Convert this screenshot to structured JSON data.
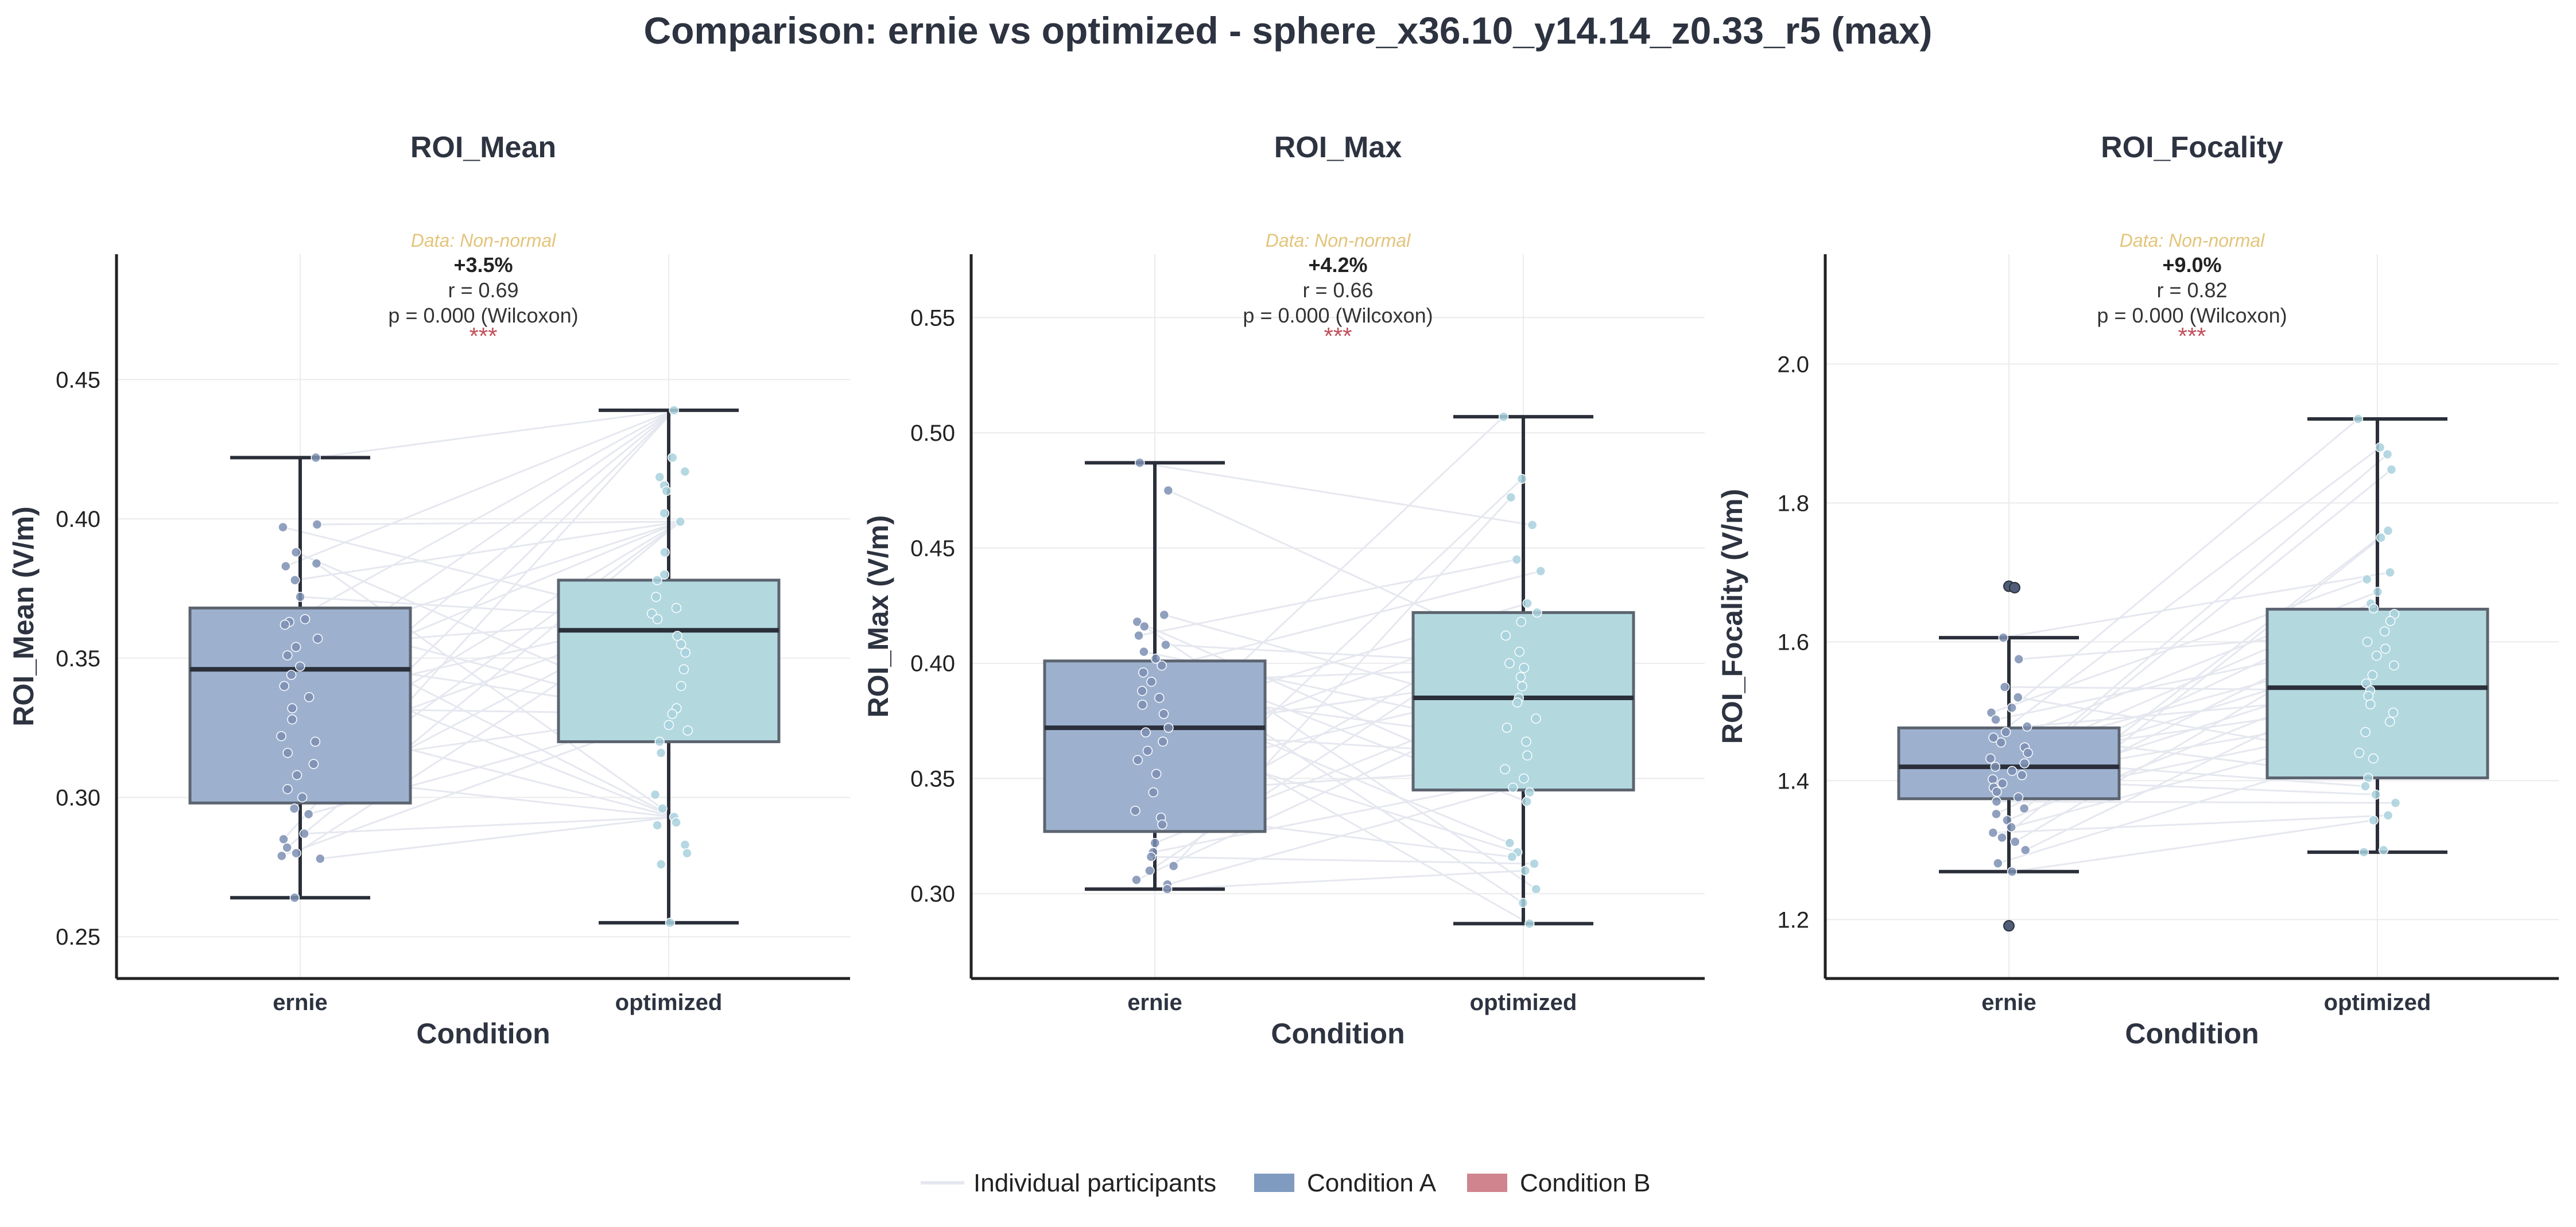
{
  "figure_title": "Comparison: ernie vs optimized - sphere_x36.10_y14.14_z0.33_r5 (max)",
  "legend": {
    "items": [
      {
        "label": "Individual participants",
        "kind": "line",
        "color": "#e6e8f0"
      },
      {
        "label": "Condition A",
        "kind": "patch",
        "color": "#7f9bbf"
      },
      {
        "label": "Condition B",
        "kind": "patch",
        "color": "#d0848e"
      }
    ]
  },
  "colors": {
    "ernie_box": "#9db1cf",
    "optimized_box": "#b3d9df",
    "ernie_points": "#7d8fb3",
    "optimized_points": "#a8d1dd",
    "median": "#2a2f3a",
    "whisker": "#2a2f3a",
    "box_edge": "#5c6470",
    "participant_lines": "#e6e8f0",
    "grid": "#ebebeb"
  },
  "chart_data": [
    {
      "type": "box",
      "title": "ROI_Mean",
      "xlabel": "Condition",
      "ylabel": "ROI_Mean (V/m)",
      "categories": [
        "ernie",
        "optimized"
      ],
      "ylim": [
        0.235,
        0.495
      ],
      "yticks": [
        0.25,
        0.3,
        0.35,
        0.4,
        0.45
      ],
      "tick_labels": [
        "0.25",
        "0.30",
        "0.35",
        "0.40",
        "0.45"
      ],
      "grid": true,
      "box_stats": [
        {
          "name": "ernie",
          "whislo": 0.264,
          "q1": 0.298,
          "median": 0.346,
          "q3": 0.368,
          "whishi": 0.422
        },
        {
          "name": "optimized",
          "whislo": 0.255,
          "q1": 0.32,
          "median": 0.36,
          "q3": 0.378,
          "whishi": 0.439
        }
      ],
      "points": {
        "ernie": [
          0.422,
          0.398,
          0.397,
          0.388,
          0.384,
          0.383,
          0.378,
          0.372,
          0.364,
          0.363,
          0.362,
          0.357,
          0.354,
          0.351,
          0.347,
          0.344,
          0.34,
          0.336,
          0.332,
          0.328,
          0.322,
          0.32,
          0.316,
          0.312,
          0.308,
          0.303,
          0.3,
          0.296,
          0.294,
          0.287,
          0.285,
          0.282,
          0.28,
          0.279,
          0.278,
          0.264
        ],
        "optimized": [
          0.439,
          0.422,
          0.417,
          0.415,
          0.412,
          0.41,
          0.402,
          0.399,
          0.388,
          0.38,
          0.378,
          0.372,
          0.368,
          0.366,
          0.364,
          0.358,
          0.355,
          0.352,
          0.346,
          0.34,
          0.332,
          0.33,
          0.326,
          0.324,
          0.32,
          0.316,
          0.301,
          0.296,
          0.293,
          0.291,
          0.29,
          0.283,
          0.28,
          0.276,
          0.255
        ]
      },
      "annotation": {
        "distribution": "Data: Non-normal",
        "change": "+3.5%",
        "effect": "r = 0.69",
        "p_value": "p = 0.000 (Wilcoxon)",
        "stars": "***"
      }
    },
    {
      "type": "box",
      "title": "ROI_Max",
      "xlabel": "Condition",
      "ylabel": "ROI_Max (V/m)",
      "categories": [
        "ernie",
        "optimized"
      ],
      "ylim": [
        0.2632,
        0.5775
      ],
      "yticks": [
        0.3,
        0.35,
        0.4,
        0.45,
        0.5,
        0.55
      ],
      "tick_labels": [
        "0.30",
        "0.35",
        "0.40",
        "0.45",
        "0.50",
        "0.55"
      ],
      "grid": true,
      "box_stats": [
        {
          "name": "ernie",
          "whislo": 0.302,
          "q1": 0.327,
          "median": 0.372,
          "q3": 0.401,
          "whishi": 0.487
        },
        {
          "name": "optimized",
          "whislo": 0.287,
          "q1": 0.345,
          "median": 0.385,
          "q3": 0.422,
          "whishi": 0.507
        }
      ],
      "points": {
        "ernie": [
          0.487,
          0.475,
          0.421,
          0.418,
          0.416,
          0.412,
          0.408,
          0.405,
          0.402,
          0.399,
          0.396,
          0.392,
          0.388,
          0.385,
          0.382,
          0.378,
          0.372,
          0.37,
          0.366,
          0.362,
          0.358,
          0.352,
          0.344,
          0.336,
          0.333,
          0.33,
          0.322,
          0.318,
          0.316,
          0.312,
          0.31,
          0.306,
          0.304,
          0.302
        ],
        "optimized": [
          0.507,
          0.48,
          0.472,
          0.46,
          0.445,
          0.44,
          0.426,
          0.422,
          0.418,
          0.412,
          0.405,
          0.4,
          0.398,
          0.394,
          0.39,
          0.385,
          0.383,
          0.376,
          0.372,
          0.366,
          0.36,
          0.354,
          0.35,
          0.346,
          0.344,
          0.34,
          0.322,
          0.318,
          0.316,
          0.313,
          0.31,
          0.302,
          0.296,
          0.287
        ]
      },
      "annotation": {
        "distribution": "Data: Non-normal",
        "change": "+4.2%",
        "effect": "r = 0.66",
        "p_value": "p = 0.000 (Wilcoxon)",
        "stars": "***"
      }
    },
    {
      "type": "box",
      "title": "ROI_Focality",
      "xlabel": "Condition",
      "ylabel": "ROI_Focality (V/m)",
      "categories": [
        "ernie",
        "optimized"
      ],
      "ylim": [
        1.1151,
        2.1582
      ],
      "yticks": [
        1.2,
        1.4,
        1.6,
        1.8,
        2.0
      ],
      "tick_labels": [
        "1.2",
        "1.4",
        "1.6",
        "1.8",
        "2.0"
      ],
      "grid": true,
      "box_stats": [
        {
          "name": "ernie",
          "whislo": 1.269,
          "q1": 1.374,
          "median": 1.42,
          "q3": 1.476,
          "whishi": 1.606
        },
        {
          "name": "optimized",
          "whislo": 1.297,
          "q1": 1.404,
          "median": 1.534,
          "q3": 1.647,
          "whishi": 1.921
        }
      ],
      "outliers": {
        "ernie": [
          1.68,
          1.678,
          1.191
        ]
      },
      "points": {
        "ernie": [
          1.606,
          1.575,
          1.535,
          1.52,
          1.505,
          1.498,
          1.488,
          1.478,
          1.47,
          1.462,
          1.455,
          1.448,
          1.44,
          1.432,
          1.425,
          1.42,
          1.414,
          1.408,
          1.402,
          1.396,
          1.39,
          1.384,
          1.376,
          1.37,
          1.36,
          1.352,
          1.343,
          1.333,
          1.325,
          1.318,
          1.312,
          1.3,
          1.281,
          1.269
        ],
        "optimized": [
          1.921,
          1.88,
          1.87,
          1.848,
          1.76,
          1.75,
          1.7,
          1.69,
          1.672,
          1.655,
          1.648,
          1.64,
          1.63,
          1.615,
          1.6,
          1.59,
          1.58,
          1.566,
          1.552,
          1.54,
          1.53,
          1.522,
          1.51,
          1.498,
          1.485,
          1.47,
          1.44,
          1.432,
          1.404,
          1.392,
          1.38,
          1.368,
          1.35,
          1.343,
          1.3,
          1.297
        ]
      },
      "annotation": {
        "distribution": "Data: Non-normal",
        "change": "+9.0%",
        "effect": "r = 0.82",
        "p_value": "p = 0.000 (Wilcoxon)",
        "stars": "***"
      }
    }
  ]
}
